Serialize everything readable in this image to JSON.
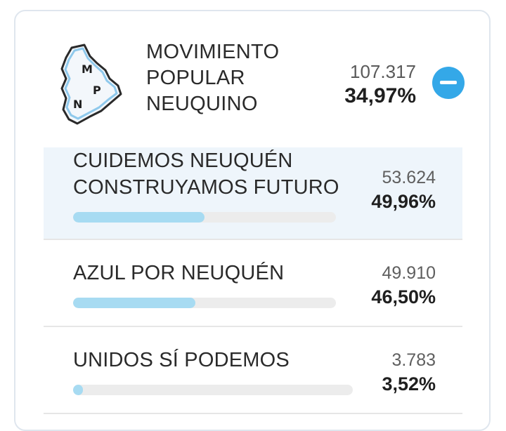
{
  "party": {
    "logo_letters": [
      "M",
      "P",
      "N"
    ],
    "name_lines": [
      "MOVIMIENTO",
      "POPULAR",
      "NEUQUINO"
    ],
    "votes": "107.317",
    "percent": "34,97%",
    "collapse_icon": "minus-icon",
    "accent_color": "#34a8e8"
  },
  "lists": [
    {
      "name_lines": [
        "CUIDEMOS NEUQUÉN",
        "CONSTRUYAMOS FUTURO"
      ],
      "votes": "53.624",
      "percent": "49,96%",
      "share": 0.4996,
      "highlighted": true
    },
    {
      "name_lines": [
        "AZUL POR NEUQUÉN"
      ],
      "votes": "49.910",
      "percent": "46,50%",
      "share": 0.465,
      "highlighted": false
    },
    {
      "name_lines": [
        "UNIDOS SÍ PODEMOS"
      ],
      "votes": "3.783",
      "percent": "3,52%",
      "share": 0.0352,
      "highlighted": false
    }
  ],
  "colors": {
    "bar_fill": "#a7dbf2",
    "bar_track": "#ececec",
    "highlight_bg": "#eef5fb"
  }
}
